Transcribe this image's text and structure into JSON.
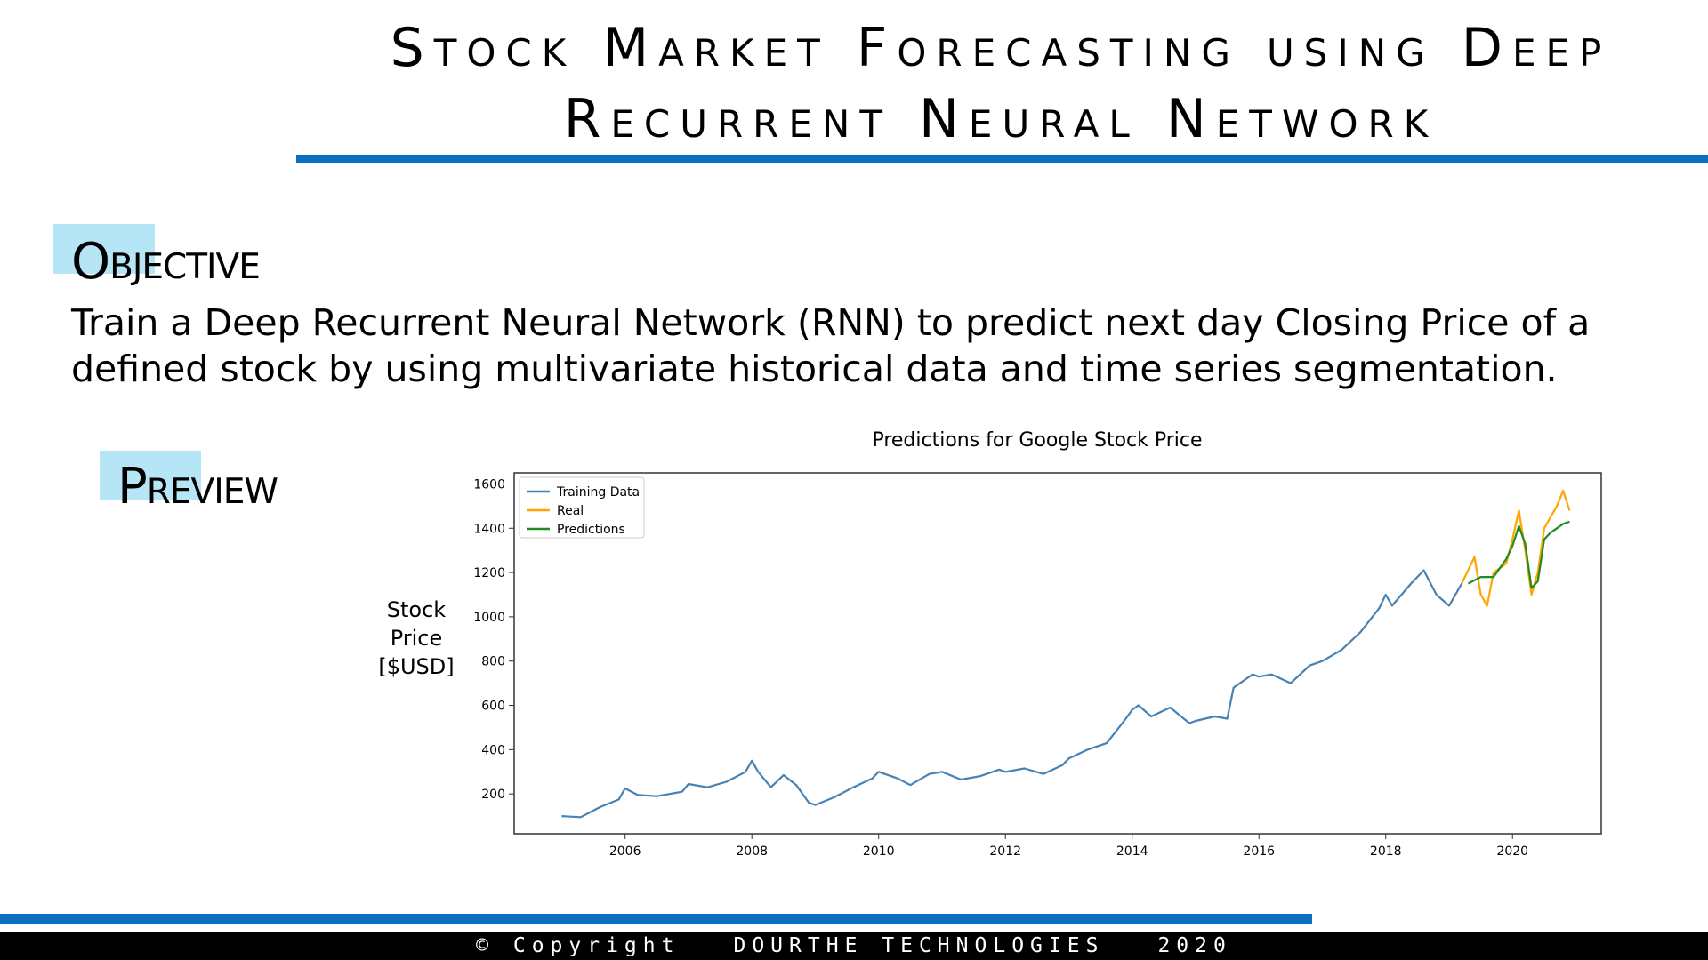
{
  "title": {
    "line1": "Stock Market Forecasting using Deep",
    "line2": "Recurrent Neural Network"
  },
  "objective": {
    "heading": "Objective",
    "body": "Train a Deep Recurrent Neural Network (RNN) to predict next day Closing Price of a defined stock by using multivariate historical data and time series segmentation."
  },
  "preview": {
    "heading": "Preview"
  },
  "chart_ylabel": {
    "line1": "Stock",
    "line2": "Price",
    "line3": "[$USD]"
  },
  "chart_data": {
    "type": "line",
    "title": "Predictions for Google Stock Price",
    "xlabel": "",
    "ylabel": "",
    "xlim": [
      2004.25,
      2021.4
    ],
    "ylim": [
      20,
      1650
    ],
    "xticks": [
      2006,
      2008,
      2010,
      2012,
      2014,
      2016,
      2018,
      2020
    ],
    "yticks": [
      200,
      400,
      600,
      800,
      1000,
      1200,
      1400,
      1600
    ],
    "legend_position": "top-left",
    "grid": false,
    "series": [
      {
        "name": "Training Data",
        "color": "#4682b4",
        "points": [
          [
            2005.0,
            100
          ],
          [
            2005.3,
            95
          ],
          [
            2005.6,
            140
          ],
          [
            2005.9,
            175
          ],
          [
            2006.0,
            225
          ],
          [
            2006.2,
            195
          ],
          [
            2006.5,
            190
          ],
          [
            2006.9,
            210
          ],
          [
            2007.0,
            245
          ],
          [
            2007.3,
            230
          ],
          [
            2007.6,
            255
          ],
          [
            2007.9,
            300
          ],
          [
            2008.0,
            350
          ],
          [
            2008.1,
            300
          ],
          [
            2008.3,
            230
          ],
          [
            2008.5,
            285
          ],
          [
            2008.7,
            240
          ],
          [
            2008.9,
            160
          ],
          [
            2009.0,
            150
          ],
          [
            2009.3,
            185
          ],
          [
            2009.6,
            230
          ],
          [
            2009.9,
            270
          ],
          [
            2010.0,
            300
          ],
          [
            2010.3,
            270
          ],
          [
            2010.5,
            240
          ],
          [
            2010.8,
            290
          ],
          [
            2011.0,
            300
          ],
          [
            2011.3,
            265
          ],
          [
            2011.6,
            280
          ],
          [
            2011.9,
            310
          ],
          [
            2012.0,
            300
          ],
          [
            2012.3,
            315
          ],
          [
            2012.6,
            290
          ],
          [
            2012.9,
            330
          ],
          [
            2013.0,
            360
          ],
          [
            2013.3,
            400
          ],
          [
            2013.6,
            430
          ],
          [
            2013.9,
            540
          ],
          [
            2014.0,
            580
          ],
          [
            2014.1,
            600
          ],
          [
            2014.3,
            550
          ],
          [
            2014.6,
            590
          ],
          [
            2014.9,
            520
          ],
          [
            2015.0,
            530
          ],
          [
            2015.3,
            550
          ],
          [
            2015.5,
            540
          ],
          [
            2015.6,
            680
          ],
          [
            2015.9,
            740
          ],
          [
            2016.0,
            730
          ],
          [
            2016.2,
            740
          ],
          [
            2016.5,
            700
          ],
          [
            2016.8,
            780
          ],
          [
            2017.0,
            800
          ],
          [
            2017.3,
            850
          ],
          [
            2017.6,
            930
          ],
          [
            2017.9,
            1040
          ],
          [
            2018.0,
            1100
          ],
          [
            2018.1,
            1050
          ],
          [
            2018.4,
            1150
          ],
          [
            2018.6,
            1210
          ],
          [
            2018.8,
            1100
          ],
          [
            2019.0,
            1050
          ],
          [
            2019.2,
            1150
          ]
        ]
      },
      {
        "name": "Real",
        "color": "#ffa500",
        "points": [
          [
            2019.2,
            1150
          ],
          [
            2019.4,
            1270
          ],
          [
            2019.5,
            1100
          ],
          [
            2019.6,
            1050
          ],
          [
            2019.7,
            1200
          ],
          [
            2019.9,
            1240
          ],
          [
            2020.0,
            1350
          ],
          [
            2020.1,
            1480
          ],
          [
            2020.2,
            1300
          ],
          [
            2020.3,
            1100
          ],
          [
            2020.4,
            1200
          ],
          [
            2020.5,
            1400
          ],
          [
            2020.6,
            1450
          ],
          [
            2020.7,
            1500
          ],
          [
            2020.8,
            1570
          ],
          [
            2020.9,
            1480
          ]
        ]
      },
      {
        "name": "Predictions",
        "color": "#1e8c1e",
        "points": [
          [
            2019.3,
            1150
          ],
          [
            2019.5,
            1180
          ],
          [
            2019.7,
            1180
          ],
          [
            2019.9,
            1260
          ],
          [
            2020.0,
            1320
          ],
          [
            2020.1,
            1410
          ],
          [
            2020.2,
            1330
          ],
          [
            2020.3,
            1130
          ],
          [
            2020.4,
            1160
          ],
          [
            2020.5,
            1350
          ],
          [
            2020.6,
            1380
          ],
          [
            2020.7,
            1400
          ],
          [
            2020.8,
            1420
          ],
          [
            2020.9,
            1430
          ]
        ]
      }
    ]
  },
  "footer": {
    "copyright": "© Copyright",
    "company": "DOURTHE TECHNOLOGIES",
    "year": "2020"
  }
}
